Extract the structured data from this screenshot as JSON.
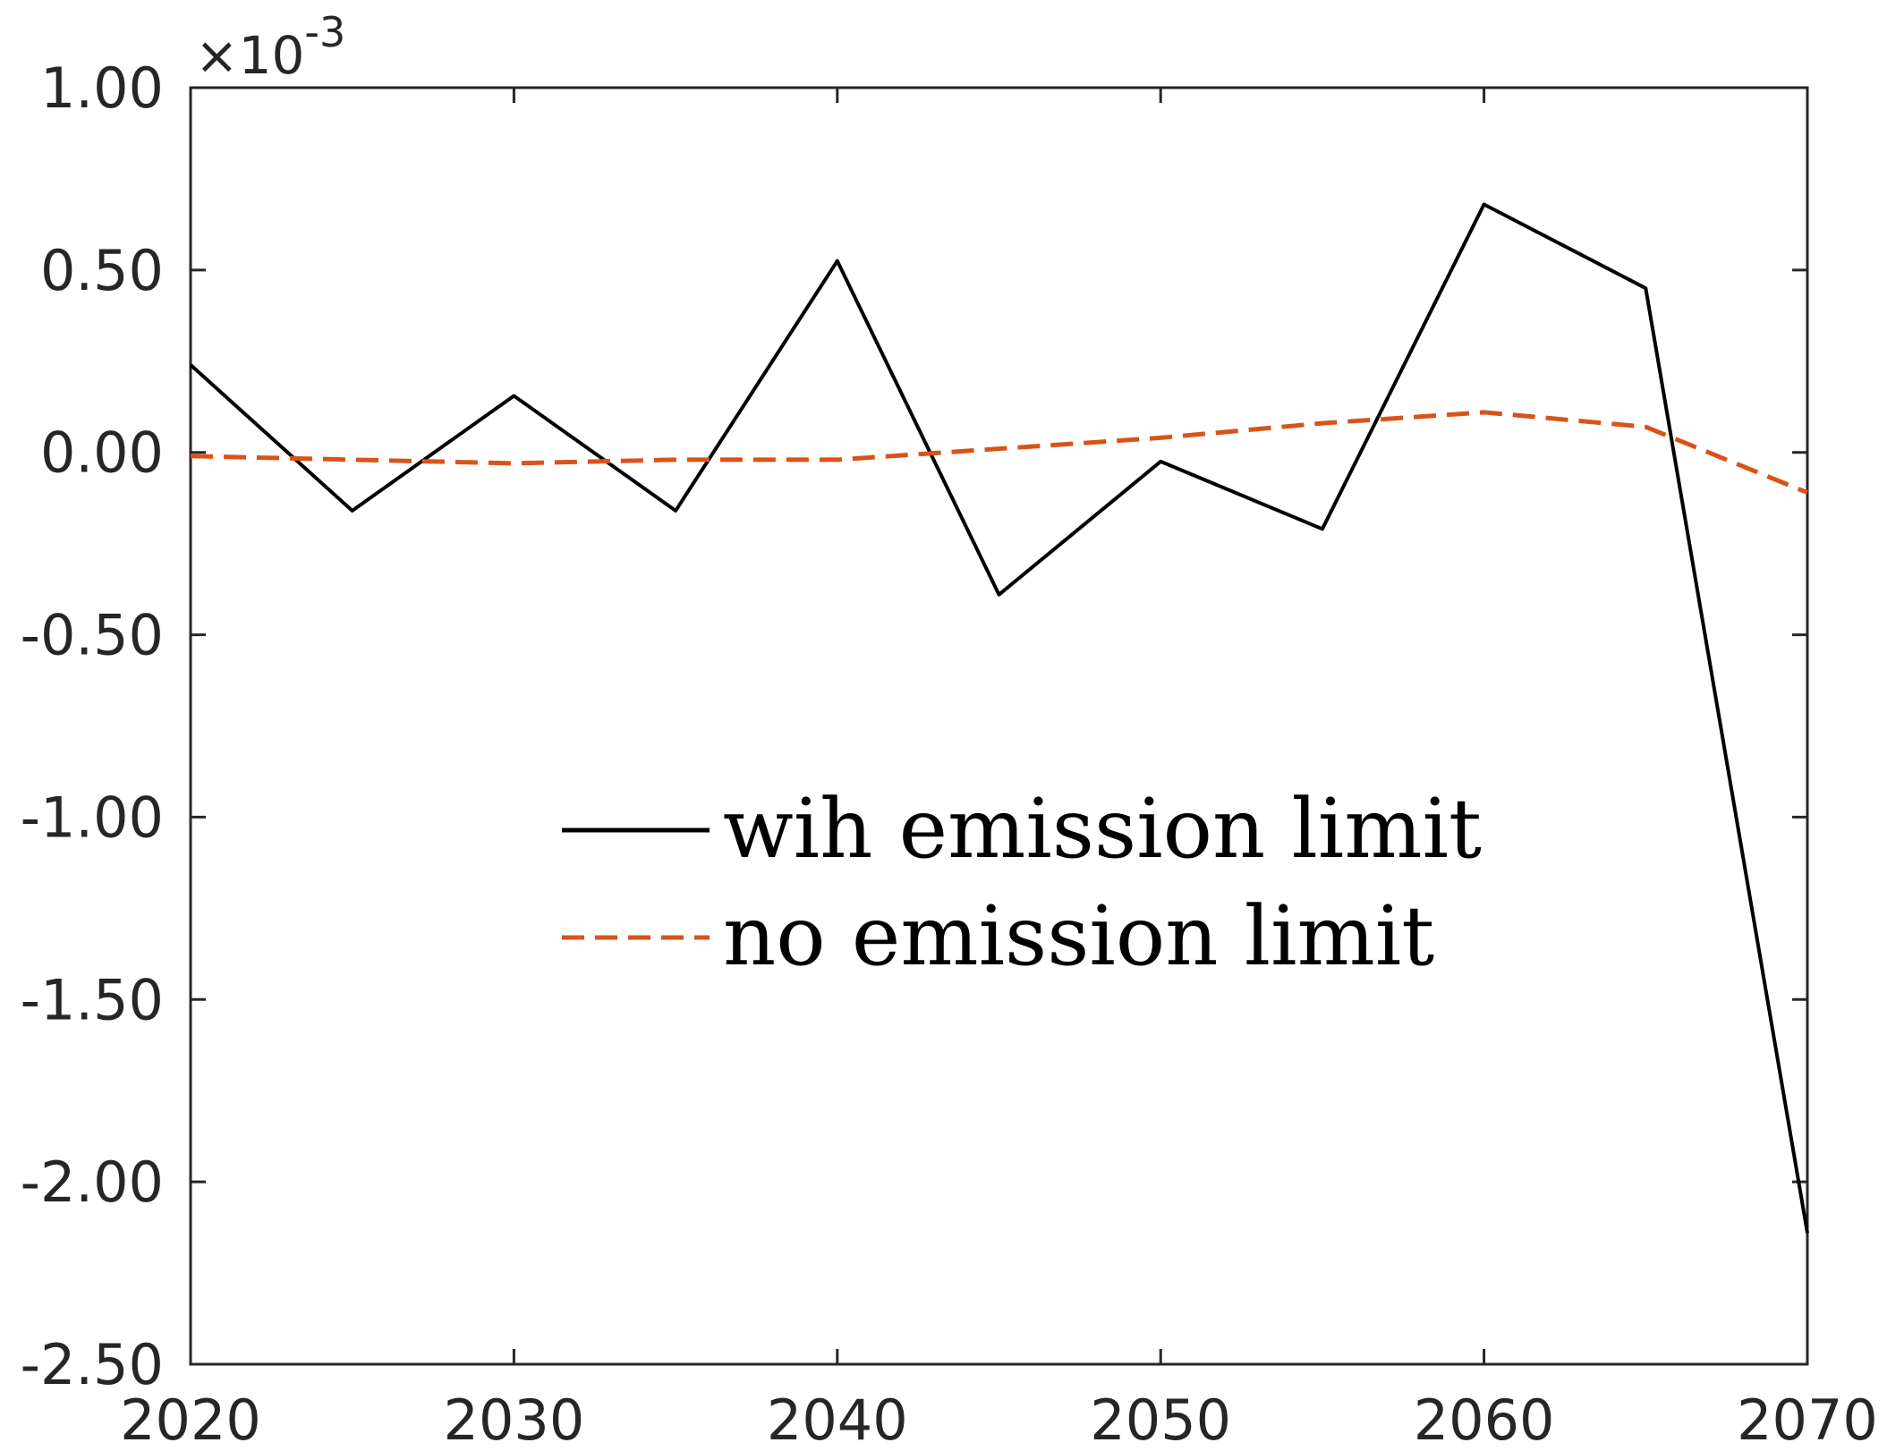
{
  "chart_data": {
    "type": "line",
    "title": "",
    "xlabel": "",
    "ylabel": "",
    "xlim": [
      2020,
      2070
    ],
    "ylim": [
      -2.5,
      1.0
    ],
    "xticks": [
      2020,
      2030,
      2040,
      2050,
      2060,
      2070
    ],
    "xtick_labels": [
      "2020",
      "2030",
      "2040",
      "2050",
      "2060",
      "2070"
    ],
    "yticks": [
      1.0,
      0.5,
      0.0,
      -0.5,
      -1.0,
      -1.5,
      -2.0,
      -2.5
    ],
    "ytick_labels": [
      "1.00",
      "0.50",
      "0.00",
      "-0.50",
      "-1.00",
      "-1.50",
      "-2.00",
      "-2.50"
    ],
    "y_multiplier": {
      "base": "×10",
      "exponent": "-3"
    },
    "grid": false,
    "legend_position": "center",
    "series": [
      {
        "name": "wih emission limit",
        "color": "#000000",
        "style": "solid",
        "x": [
          2020,
          2025,
          2030,
          2035,
          2040,
          2045,
          2050,
          2055,
          2060,
          2065,
          2070
        ],
        "y": [
          0.24,
          -0.16,
          0.155,
          -0.16,
          0.525,
          -0.39,
          -0.025,
          -0.21,
          0.68,
          0.45,
          -2.14
        ]
      },
      {
        "name": "no emission limit",
        "color": "#D95319",
        "style": "dashed",
        "x": [
          2020,
          2025,
          2030,
          2035,
          2040,
          2045,
          2050,
          2055,
          2060,
          2065,
          2070
        ],
        "y": [
          -0.01,
          -0.02,
          -0.03,
          -0.02,
          -0.02,
          0.01,
          0.04,
          0.08,
          0.11,
          0.07,
          -0.11
        ]
      }
    ]
  }
}
